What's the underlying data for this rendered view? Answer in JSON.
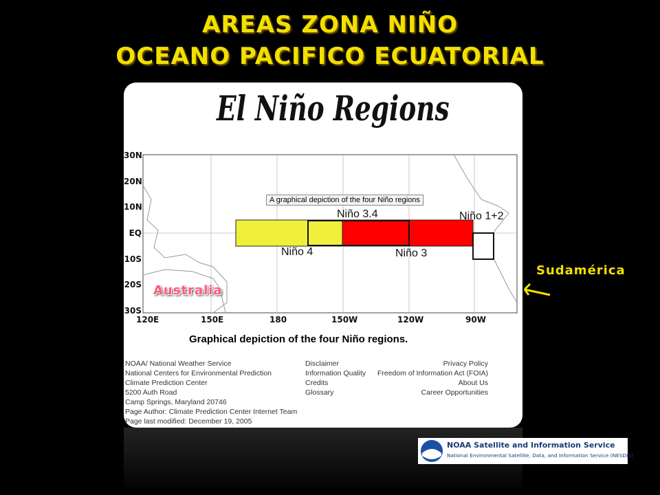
{
  "title": {
    "line1": "AREAS ZONA NIÑO",
    "line2": "OCEANO PACIFICO ECUATORIAL"
  },
  "panel": {
    "heading": "El Niño Regions",
    "lat_labels": [
      "30N",
      "20N",
      "10N",
      "EQ",
      "10S",
      "20S",
      "30S"
    ],
    "lon_labels": [
      "120E",
      "150E",
      "180",
      "150W",
      "120W",
      "90W"
    ],
    "tooltip": "A graphical depiction of the four Niño regions",
    "regions": {
      "nino34": "Niño 3.4",
      "nino12": "Niño 1+2",
      "nino4": "Niño 4",
      "nino3": "Niño 3"
    },
    "australia": "Australia",
    "caption": "Graphical depiction of the four Niño regions.",
    "footer_left": [
      "NOAA/ National Weather Service",
      "National Centers for Environmental Prediction",
      "Climate Prediction Center",
      "5200 Auth Road",
      "Camp Springs, Maryland 20746",
      "Page Author: Climate Prediction Center Internet Team",
      "Page last modified: December 19, 2005"
    ],
    "footer_mid": [
      "Disclaimer",
      "Information Quality",
      "Credits",
      "Glossary"
    ],
    "footer_right": [
      "Privacy Policy",
      "Freedom of Information Act (FOIA)",
      "About Us",
      "Career Opportunities"
    ]
  },
  "sudamerica": "Sudamérica",
  "logo": {
    "title": "NOAA Satellite and Information Service",
    "subtitle": "National Environmental Satellite, Data, and Information Service (NESDIS)"
  }
}
